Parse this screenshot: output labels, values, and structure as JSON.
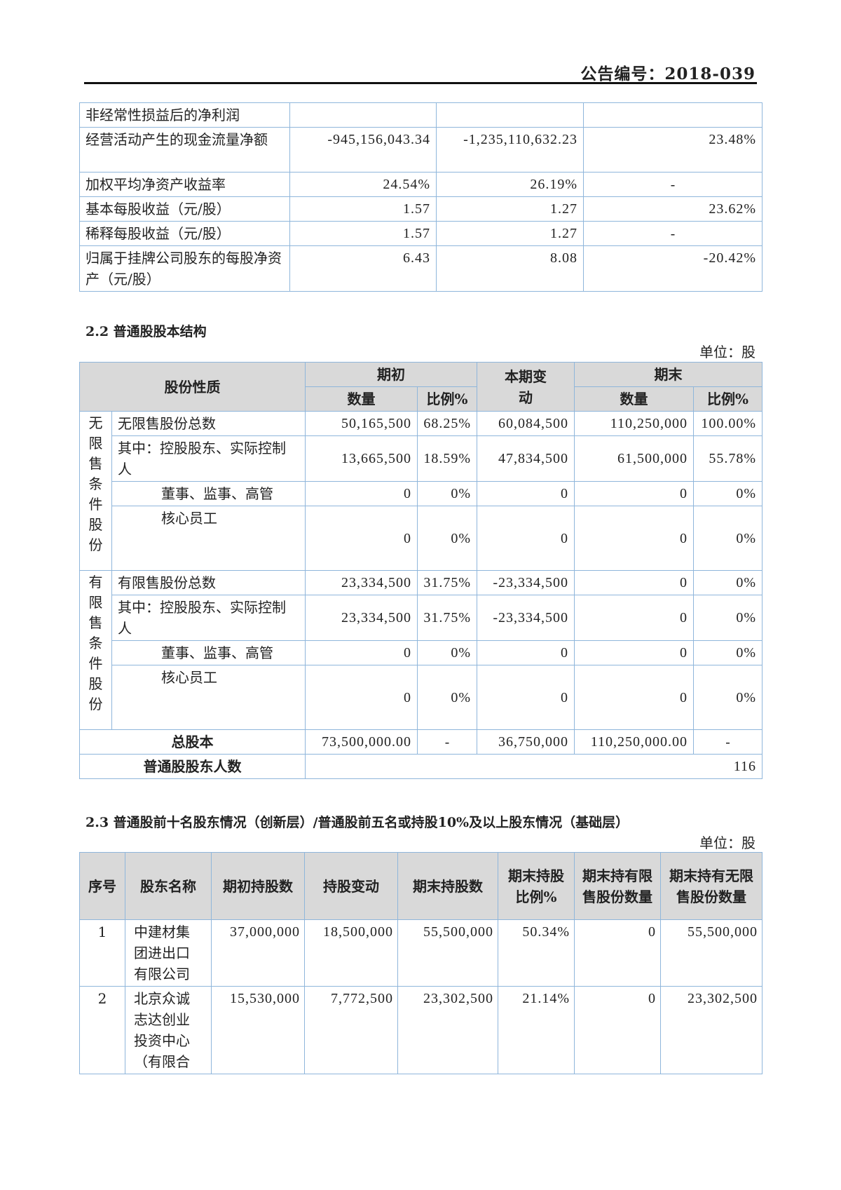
{
  "header": {
    "announcement_no": "公告编号：2018-039"
  },
  "table1": {
    "rows": [
      {
        "label": "非经常性损益后的净利润",
        "values": [
          "",
          "",
          ""
        ]
      },
      {
        "label": "经营活动产生的现金流量净额",
        "values": [
          "-945,156,043.34",
          "-1,235,110,632.23",
          "23.48%"
        ]
      },
      {
        "label": "加权平均净资产收益率",
        "values": [
          "24.54%",
          "26.19%",
          "-"
        ]
      },
      {
        "label": "基本每股收益（元/股）",
        "values": [
          "1.57",
          "1.27",
          "23.62%"
        ]
      },
      {
        "label": "稀释每股收益（元/股）",
        "values": [
          "1.57",
          "1.27",
          "-"
        ]
      },
      {
        "label": "归属于挂牌公司股东的每股净资产（元/股）",
        "values": [
          "6.43",
          "8.08",
          "-20.42%"
        ]
      }
    ]
  },
  "section22": {
    "title": "2.2 普通股股本结构",
    "unit": "单位：股",
    "headers": {
      "nature": "股份性质",
      "begin": "期初",
      "change": "本期变动",
      "end": "期末",
      "qty": "数量",
      "ratio": "比例%"
    },
    "groups": [
      {
        "category": "无限售条件股份",
        "rows": [
          {
            "label": "无限售股份总数",
            "values": [
              "50,165,500",
              "68.25%",
              "60,084,500",
              "110,250,000",
              "100.00%"
            ]
          },
          {
            "label": "其中：控股股东、实际控制人",
            "values": [
              "13,665,500",
              "18.59%",
              "47,834,500",
              "61,500,000",
              "55.78%"
            ]
          },
          {
            "label": "董事、监事、高管",
            "values": [
              "0",
              "0%",
              "0",
              "0",
              "0%"
            ]
          },
          {
            "label": "核心员工",
            "values": [
              "0",
              "0%",
              "0",
              "0",
              "0%"
            ]
          }
        ]
      },
      {
        "category": "有限售条件股份",
        "rows": [
          {
            "label": "有限售股份总数",
            "values": [
              "23,334,500",
              "31.75%",
              "-23,334,500",
              "0",
              "0%"
            ]
          },
          {
            "label": "其中：控股股东、实际控制人",
            "values": [
              "23,334,500",
              "31.75%",
              "-23,334,500",
              "0",
              "0%"
            ]
          },
          {
            "label": "董事、监事、高管",
            "values": [
              "0",
              "0%",
              "0",
              "0",
              "0%"
            ]
          },
          {
            "label": "核心员工",
            "values": [
              "0",
              "0%",
              "0",
              "0",
              "0%"
            ]
          }
        ]
      }
    ],
    "total": {
      "label": "总股本",
      "values": [
        "73,500,000.00",
        "-",
        "36,750,000",
        "110,250,000.00",
        "-"
      ]
    },
    "holders": {
      "label": "普通股股东人数",
      "value": "116"
    }
  },
  "section23": {
    "title": "2.3 普通股前十名股东情况（创新层）/普通股前五名或持股10%及以上股东情况（基础层）",
    "unit": "单位：股",
    "headers": [
      "序号",
      "股东名称",
      "期初持股数",
      "持股变动",
      "期末持股数",
      "期末持股比例%",
      "期末持有限售股份数量",
      "期末持有无限售股份数量"
    ],
    "rows": [
      {
        "no": "1",
        "name": "中建材集团进出口有限公司",
        "values": [
          "37,000,000",
          "18,500,000",
          "55,500,000",
          "50.34%",
          "0",
          "55,500,000"
        ]
      },
      {
        "no": "2",
        "name": "北京众诚志达创业投资中心（有限合",
        "values": [
          "15,530,000",
          "7,772,500",
          "23,302,500",
          "21.14%",
          "0",
          "23,302,500"
        ]
      }
    ]
  }
}
